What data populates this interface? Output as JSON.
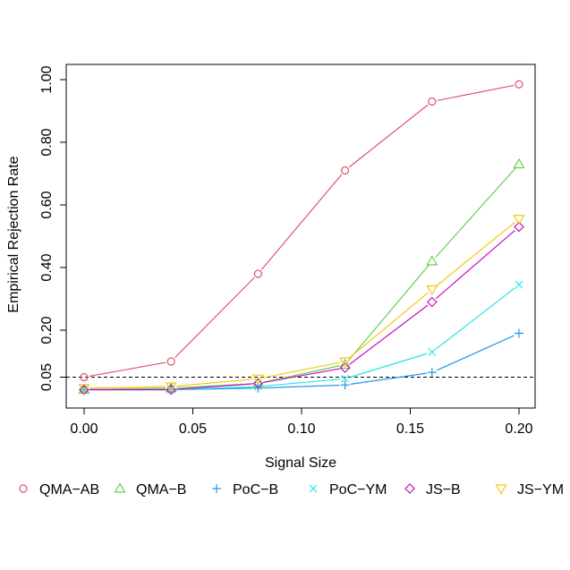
{
  "chart_data": {
    "type": "line",
    "xlabel": "Signal Size",
    "ylabel": "Empirical Rejection Rate",
    "x": [
      0.0,
      0.04,
      0.08,
      0.12,
      0.16,
      0.2
    ],
    "xlim": [
      0.0,
      0.2
    ],
    "ylim": [
      0.0,
      1.0
    ],
    "xticks": [
      0.0,
      0.05,
      0.1,
      0.15,
      0.2
    ],
    "xtick_labels": [
      "0.00",
      "0.05",
      "0.10",
      "0.15",
      "0.20"
    ],
    "yticks": [
      0.05,
      0.2,
      0.4,
      0.6,
      0.8,
      1.0
    ],
    "ytick_labels": [
      "0.05",
      "0.20",
      "0.40",
      "0.60",
      "0.80",
      "1.00"
    ],
    "reference_line": {
      "y": 0.05,
      "style": "dashed"
    },
    "legend_position": "bottom",
    "series": [
      {
        "name": "QMA−AB",
        "color": "#DF536B",
        "marker": "circle",
        "values": [
          0.05,
          0.1,
          0.38,
          0.71,
          0.93,
          0.985
        ]
      },
      {
        "name": "QMA−B",
        "color": "#61D04F",
        "marker": "triangle-up",
        "values": [
          0.01,
          0.015,
          0.03,
          0.09,
          0.42,
          0.73
        ]
      },
      {
        "name": "PoC−B",
        "color": "#2297E6",
        "marker": "plus",
        "values": [
          0.01,
          0.01,
          0.015,
          0.025,
          0.065,
          0.19
        ]
      },
      {
        "name": "PoC−YM",
        "color": "#28E2E5",
        "marker": "cross",
        "values": [
          0.01,
          0.01,
          0.02,
          0.045,
          0.13,
          0.345
        ]
      },
      {
        "name": "JS−B",
        "color": "#CD0BBC",
        "marker": "diamond",
        "values": [
          0.01,
          0.01,
          0.03,
          0.08,
          0.29,
          0.53
        ]
      },
      {
        "name": "JS−YM",
        "color": "#F5C710",
        "marker": "triangle-down",
        "values": [
          0.015,
          0.02,
          0.045,
          0.1,
          0.33,
          0.555
        ]
      }
    ]
  }
}
